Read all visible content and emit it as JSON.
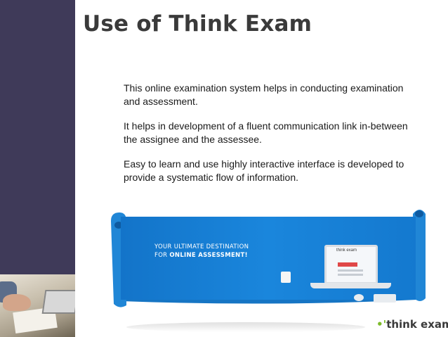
{
  "slide": {
    "title": "Use of Think Exam",
    "bullets": [
      "This online examination system helps in conducting examination and assessment.",
      "It helps in development of a fluent communication link in-between the assignee and the assessee.",
      "Easy to learn and use highly interactive interface is developed to provide a systematic flow of information."
    ]
  },
  "banner": {
    "tagline_line1": "YOUR ULTIMATE DESTINATION",
    "tagline_line2_prefix": "FOR ",
    "tagline_line2_bold": "ONLINE ASSESSMENT!",
    "screen_logo": "think exam",
    "background_color": "#1a86dc"
  },
  "brand": {
    "logo_text": "think exam",
    "logo_mark_color": "#7dbb2b"
  },
  "colors": {
    "sidebar": "#3f3a59",
    "title": "#3a3a3a"
  }
}
